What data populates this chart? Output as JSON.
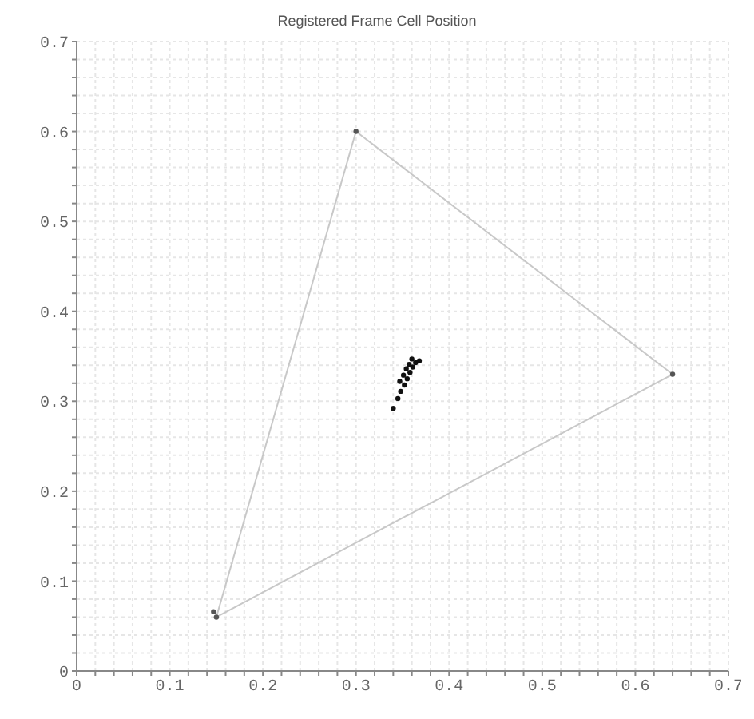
{
  "chart_data": {
    "type": "scatter",
    "title": "Registered Frame Cell Position",
    "xlim": [
      0,
      0.7
    ],
    "ylim": [
      0,
      0.7
    ],
    "xticks": [
      0,
      {
        "value": 0.02,
        "label": null
      },
      {
        "value": 0.04,
        "label": null
      },
      {
        "value": 0.06,
        "label": null
      },
      {
        "value": 0.08,
        "label": null
      },
      0.1,
      {
        "value": 0.12,
        "label": null
      },
      {
        "value": 0.14,
        "label": null
      },
      {
        "value": 0.16,
        "label": null
      },
      {
        "value": 0.18,
        "label": null
      },
      0.2,
      {
        "value": 0.22,
        "label": null
      },
      {
        "value": 0.24,
        "label": null
      },
      {
        "value": 0.26,
        "label": null
      },
      {
        "value": 0.28,
        "label": null
      },
      0.3,
      {
        "value": 0.32,
        "label": null
      },
      {
        "value": 0.34,
        "label": null
      },
      {
        "value": 0.36,
        "label": null
      },
      {
        "value": 0.38,
        "label": null
      },
      0.4,
      {
        "value": 0.42,
        "label": null
      },
      {
        "value": 0.44,
        "label": null
      },
      {
        "value": 0.46,
        "label": null
      },
      {
        "value": 0.48,
        "label": null
      },
      0.5,
      {
        "value": 0.52,
        "label": null
      },
      {
        "value": 0.54,
        "label": null
      },
      {
        "value": 0.56,
        "label": null
      },
      {
        "value": 0.58,
        "label": null
      },
      0.6,
      {
        "value": 0.62,
        "label": null
      },
      {
        "value": 0.64,
        "label": null
      },
      {
        "value": 0.66,
        "label": null
      },
      {
        "value": 0.68,
        "label": null
      },
      0.7
    ],
    "yticks": [
      0,
      {
        "value": 0.02,
        "label": null
      },
      {
        "value": 0.04,
        "label": null
      },
      {
        "value": 0.06,
        "label": null
      },
      {
        "value": 0.08,
        "label": null
      },
      0.1,
      {
        "value": 0.12,
        "label": null
      },
      {
        "value": 0.14,
        "label": null
      },
      {
        "value": 0.16,
        "label": null
      },
      {
        "value": 0.18,
        "label": null
      },
      0.2,
      {
        "value": 0.22,
        "label": null
      },
      {
        "value": 0.24,
        "label": null
      },
      {
        "value": 0.26,
        "label": null
      },
      {
        "value": 0.28,
        "label": null
      },
      0.3,
      {
        "value": 0.32,
        "label": null
      },
      {
        "value": 0.34,
        "label": null
      },
      {
        "value": 0.36,
        "label": null
      },
      {
        "value": 0.38,
        "label": null
      },
      0.4,
      {
        "value": 0.42,
        "label": null
      },
      {
        "value": 0.44,
        "label": null
      },
      {
        "value": 0.46,
        "label": null
      },
      {
        "value": 0.48,
        "label": null
      },
      0.5,
      {
        "value": 0.52,
        "label": null
      },
      {
        "value": 0.54,
        "label": null
      },
      {
        "value": 0.56,
        "label": null
      },
      {
        "value": 0.58,
        "label": null
      },
      0.6,
      {
        "value": 0.62,
        "label": null
      },
      {
        "value": 0.64,
        "label": null
      },
      {
        "value": 0.66,
        "label": null
      },
      {
        "value": 0.68,
        "label": null
      },
      0.7
    ],
    "grid": true,
    "marker": "circle",
    "series": [
      {
        "type": "line",
        "color": "#c8c8c8",
        "marker": "none",
        "x": [
          0.15,
          0.3
        ],
        "values": [
          0.06,
          0.6
        ]
      },
      {
        "type": "line",
        "color": "#c8c8c8",
        "marker": "none",
        "x": [
          0.3,
          0.64
        ],
        "values": [
          0.6,
          0.33
        ]
      },
      {
        "type": "line",
        "color": "#c8c8c8",
        "marker": "none",
        "x": [
          0.15,
          0.64
        ],
        "values": [
          0.06,
          0.33
        ]
      },
      {
        "color": "#555555",
        "x": [
          0.64,
          0.3,
          0.15,
          0.147
        ],
        "values": [
          0.33,
          0.6,
          0.06,
          0.066
        ]
      },
      {
        "color": "#111111",
        "x": [
          0.34,
          0.345,
          0.348,
          0.352,
          0.347,
          0.355,
          0.351,
          0.358,
          0.354,
          0.361,
          0.357,
          0.364,
          0.36,
          0.368
        ],
        "values": [
          0.292,
          0.303,
          0.311,
          0.318,
          0.322,
          0.325,
          0.329,
          0.332,
          0.336,
          0.338,
          0.341,
          0.343,
          0.347,
          0.345
        ]
      }
    ]
  }
}
